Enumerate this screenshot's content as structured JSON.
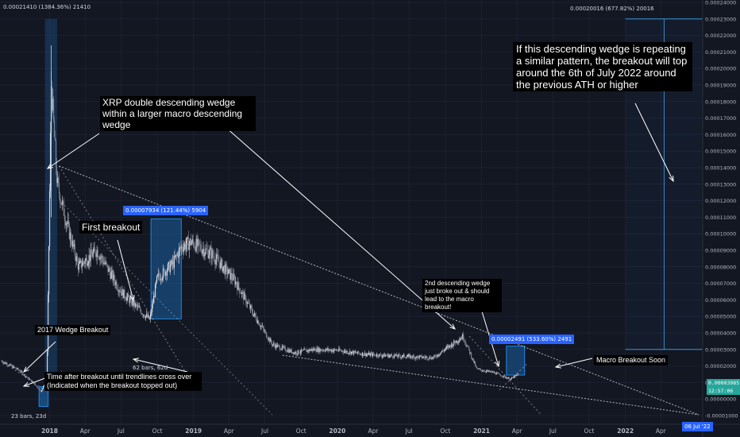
{
  "header": {
    "top_left": "0.00021410 (1384.36%) 21410",
    "top_center": "0.00020016 (677.82%) 20016"
  },
  "annotations": {
    "projection_note": "If this descending wedge is repeating a similar pattern, the breakout will top around the 6th of July 2022 around the previous ATH or higher",
    "double_wedge": "XRP double descending wedge within a larger macro descending wedge",
    "first_breakout": "First breakout",
    "wedge_2017": "2017 Wedge Breakout",
    "time_after": "Time after breakout until trendlines cross over (Indicated when the breakout topped out)",
    "second_wedge": "2nd descending wedge just broke out & should lead to the macro breakout!",
    "macro_soon": "Macro Breakout Soon"
  },
  "measurements": {
    "first_breakout_range": "0.00007934 (121.44%) 5904",
    "second_breakout_range": "0.00002491 (533.60%) 2491",
    "bars_2018": "62 bars, 62d",
    "bars_2017": "23 bars, 23d"
  },
  "badges": {
    "current_price": "0.00003985",
    "countdown": "12:57:06",
    "target_date": "06 Jul '22"
  },
  "colors": {
    "background": "#131722",
    "candle_up": "#d1d4dc",
    "candle_down": "#7a7f8e",
    "accent_blue": "#2962ff",
    "range_fill": "#1e88e5",
    "price_badge": "#26a69a",
    "trendline": "#d1d4dc"
  },
  "chart_data": {
    "type": "candlestick",
    "price_unit": "BTC",
    "x_axis_ticks": [
      "2018",
      "Apr",
      "Jul",
      "Oct",
      "2019",
      "Apr",
      "Jul",
      "Oct",
      "2020",
      "Apr",
      "Jul",
      "Oct",
      "2021",
      "Apr",
      "Jul",
      "Oct",
      "2022",
      "Apr"
    ],
    "y_axis_ticks": [
      "0.00024000",
      "0.00023000",
      "0.00022000",
      "0.00021000",
      "0.00020000",
      "0.00019000",
      "0.00018000",
      "0.00017000",
      "0.00016000",
      "0.00015000",
      "0.00014000",
      "0.00013000",
      "0.00012000",
      "0.00011000",
      "0.00010000",
      "0.00009000",
      "0.00008000",
      "0.00007000",
      "0.00006000",
      "0.00005000",
      "0.00004000",
      "0.00003000",
      "0.00002000",
      "0.00001000",
      "0.00000000",
      "-0.00001000"
    ],
    "ylim": [
      -1e-05,
      0.00024
    ],
    "price_path": [
      {
        "date": "2017-09-01",
        "price": 2.3e-05
      },
      {
        "date": "2017-10-15",
        "price": 1.75e-05
      },
      {
        "date": "2017-11-20",
        "price": 1e-05
      },
      {
        "date": "2017-12-10",
        "price": 4.5e-06
      },
      {
        "date": "2017-12-25",
        "price": 1.2e-05
      },
      {
        "date": "2018-01-05",
        "price": 0.00019
      },
      {
        "date": "2018-01-20",
        "price": 0.00013
      },
      {
        "date": "2018-02-15",
        "price": 0.000105
      },
      {
        "date": "2018-03-15",
        "price": 8e-05
      },
      {
        "date": "2018-05-01",
        "price": 9e-05
      },
      {
        "date": "2018-07-01",
        "price": 6.5e-05
      },
      {
        "date": "2018-09-12",
        "price": 4.8e-05
      },
      {
        "date": "2018-10-01",
        "price": 7.3e-05
      },
      {
        "date": "2018-11-10",
        "price": 8.2e-05
      },
      {
        "date": "2018-12-01",
        "price": 9.2e-05
      },
      {
        "date": "2018-12-25",
        "price": 9.5e-05
      },
      {
        "date": "2019-02-15",
        "price": 8.8e-05
      },
      {
        "date": "2019-04-15",
        "price": 7.2e-05
      },
      {
        "date": "2019-06-01",
        "price": 5.2e-05
      },
      {
        "date": "2019-07-20",
        "price": 3.3e-05
      },
      {
        "date": "2019-09-15",
        "price": 2.8e-05
      },
      {
        "date": "2019-11-01",
        "price": 3e-05
      },
      {
        "date": "2020-01-01",
        "price": 2.95e-05
      },
      {
        "date": "2020-03-15",
        "price": 2.7e-05
      },
      {
        "date": "2020-06-01",
        "price": 2.6e-05
      },
      {
        "date": "2020-09-01",
        "price": 2.5e-05
      },
      {
        "date": "2020-11-15",
        "price": 3.8e-05
      },
      {
        "date": "2020-12-20",
        "price": 1.8e-05
      },
      {
        "date": "2021-02-01",
        "price": 1.6e-05
      },
      {
        "date": "2021-03-15",
        "price": 1.2e-05
      },
      {
        "date": "2021-04-05",
        "price": 1.5e-05
      }
    ]
  }
}
